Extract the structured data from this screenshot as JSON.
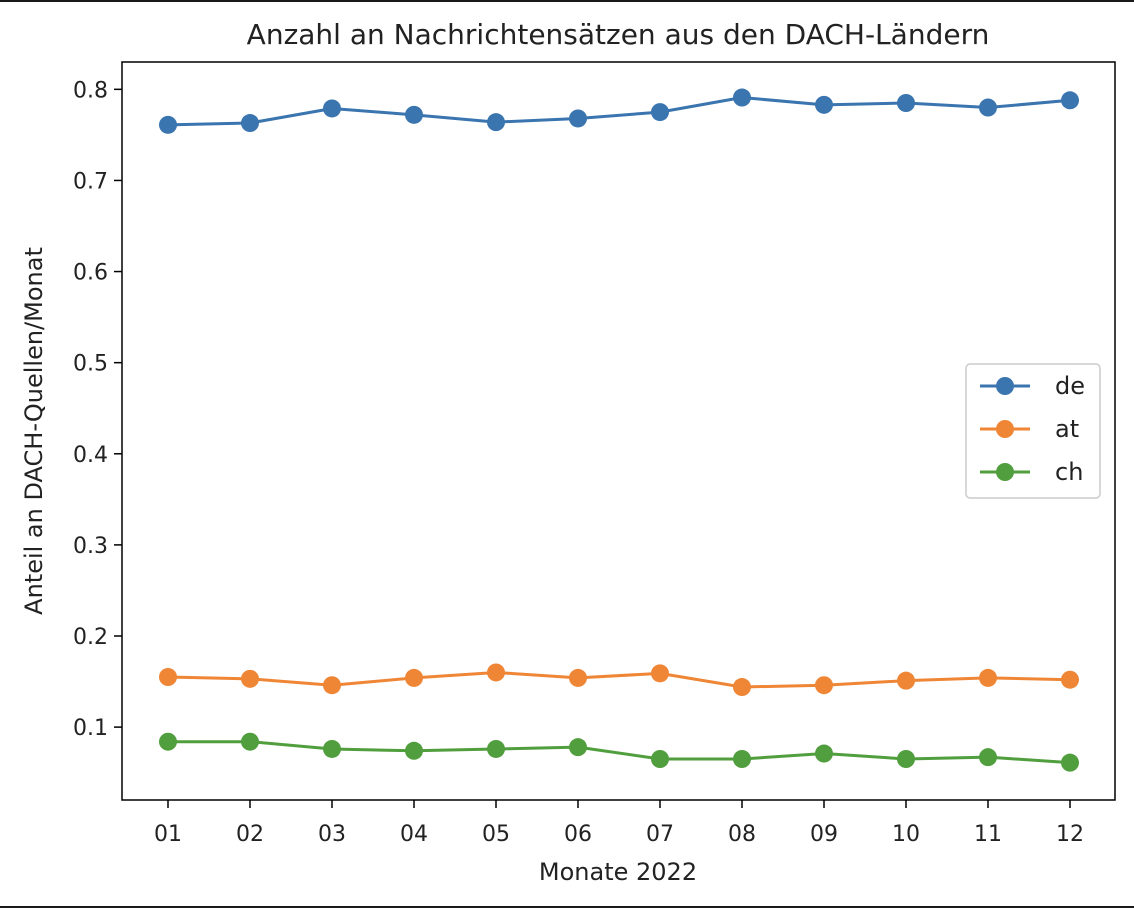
{
  "chart_data": {
    "type": "line",
    "title": "Anzahl an Nachrichtensätzen aus den DACH-Ländern",
    "xlabel": "Monate 2022",
    "ylabel": "Anteil an DACH-Quellen/Monat",
    "categories": [
      "01",
      "02",
      "03",
      "04",
      "05",
      "06",
      "07",
      "08",
      "09",
      "10",
      "11",
      "12"
    ],
    "ylim": [
      0.02,
      0.83
    ],
    "yticks": [
      "0.1",
      "0.2",
      "0.3",
      "0.4",
      "0.5",
      "0.6",
      "0.7",
      "0.8"
    ],
    "grid": false,
    "legend_position": "center-right",
    "series": [
      {
        "name": "de",
        "color": "#3a75af",
        "values": [
          0.761,
          0.763,
          0.779,
          0.772,
          0.764,
          0.768,
          0.775,
          0.791,
          0.783,
          0.785,
          0.78,
          0.788
        ]
      },
      {
        "name": "at",
        "color": "#ef8636",
        "values": [
          0.155,
          0.153,
          0.146,
          0.154,
          0.16,
          0.154,
          0.159,
          0.144,
          0.146,
          0.151,
          0.154,
          0.152
        ]
      },
      {
        "name": "ch",
        "color": "#519e3e",
        "values": [
          0.084,
          0.084,
          0.076,
          0.074,
          0.076,
          0.078,
          0.065,
          0.065,
          0.071,
          0.065,
          0.067,
          0.061
        ]
      }
    ]
  }
}
